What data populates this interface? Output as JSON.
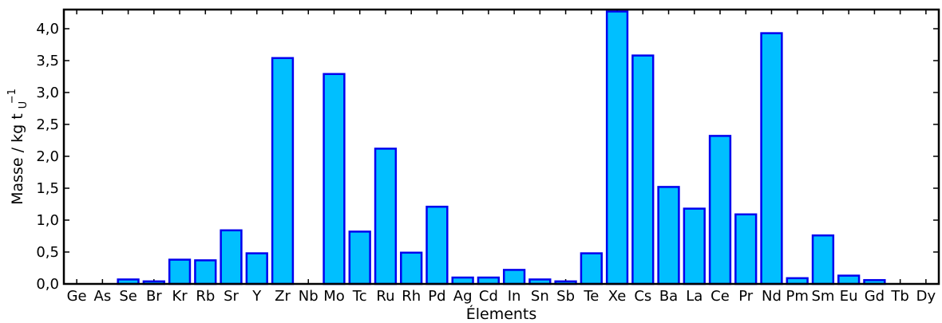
{
  "chart_data": {
    "type": "bar",
    "xlabel": "Élements",
    "ylabel": "Masse / kg t",
    "ylabel_sub": "U",
    "ylabel_sup": "−1",
    "ylim": [
      0,
      4.3
    ],
    "yticks": [
      0,
      0.5,
      1.0,
      1.5,
      2.0,
      2.5,
      3.0,
      3.5,
      4.0
    ],
    "ytick_labels": [
      "0,0",
      "0,5",
      "1,0",
      "1,5",
      "2,0",
      "2,5",
      "3,0",
      "3,5",
      "4,0"
    ],
    "categories": [
      "Ge",
      "As",
      "Se",
      "Br",
      "Kr",
      "Rb",
      "Sr",
      "Y",
      "Zr",
      "Nb",
      "Mo",
      "Tc",
      "Ru",
      "Rh",
      "Pd",
      "Ag",
      "Cd",
      "In",
      "Sn",
      "Sb",
      "Te",
      "Xe",
      "Cs",
      "Ba",
      "La",
      "Ce",
      "Pr",
      "Nd",
      "Pm",
      "Sm",
      "Eu",
      "Gd",
      "Tb",
      "Dy"
    ],
    "values": [
      0.0,
      0.0,
      0.07,
      0.04,
      0.38,
      0.37,
      0.84,
      0.48,
      3.54,
      0.0,
      3.29,
      0.82,
      2.12,
      0.49,
      1.21,
      0.1,
      0.1,
      0.22,
      0.07,
      0.04,
      0.48,
      4.27,
      3.58,
      1.52,
      1.18,
      2.32,
      1.09,
      3.93,
      0.09,
      0.76,
      0.13,
      0.06,
      0.0,
      0.0
    ],
    "colors": {
      "bar_fill": "#00BFFF",
      "bar_edge": "#0000EE",
      "axis": "#000000"
    },
    "grid": false,
    "legend": "none"
  }
}
